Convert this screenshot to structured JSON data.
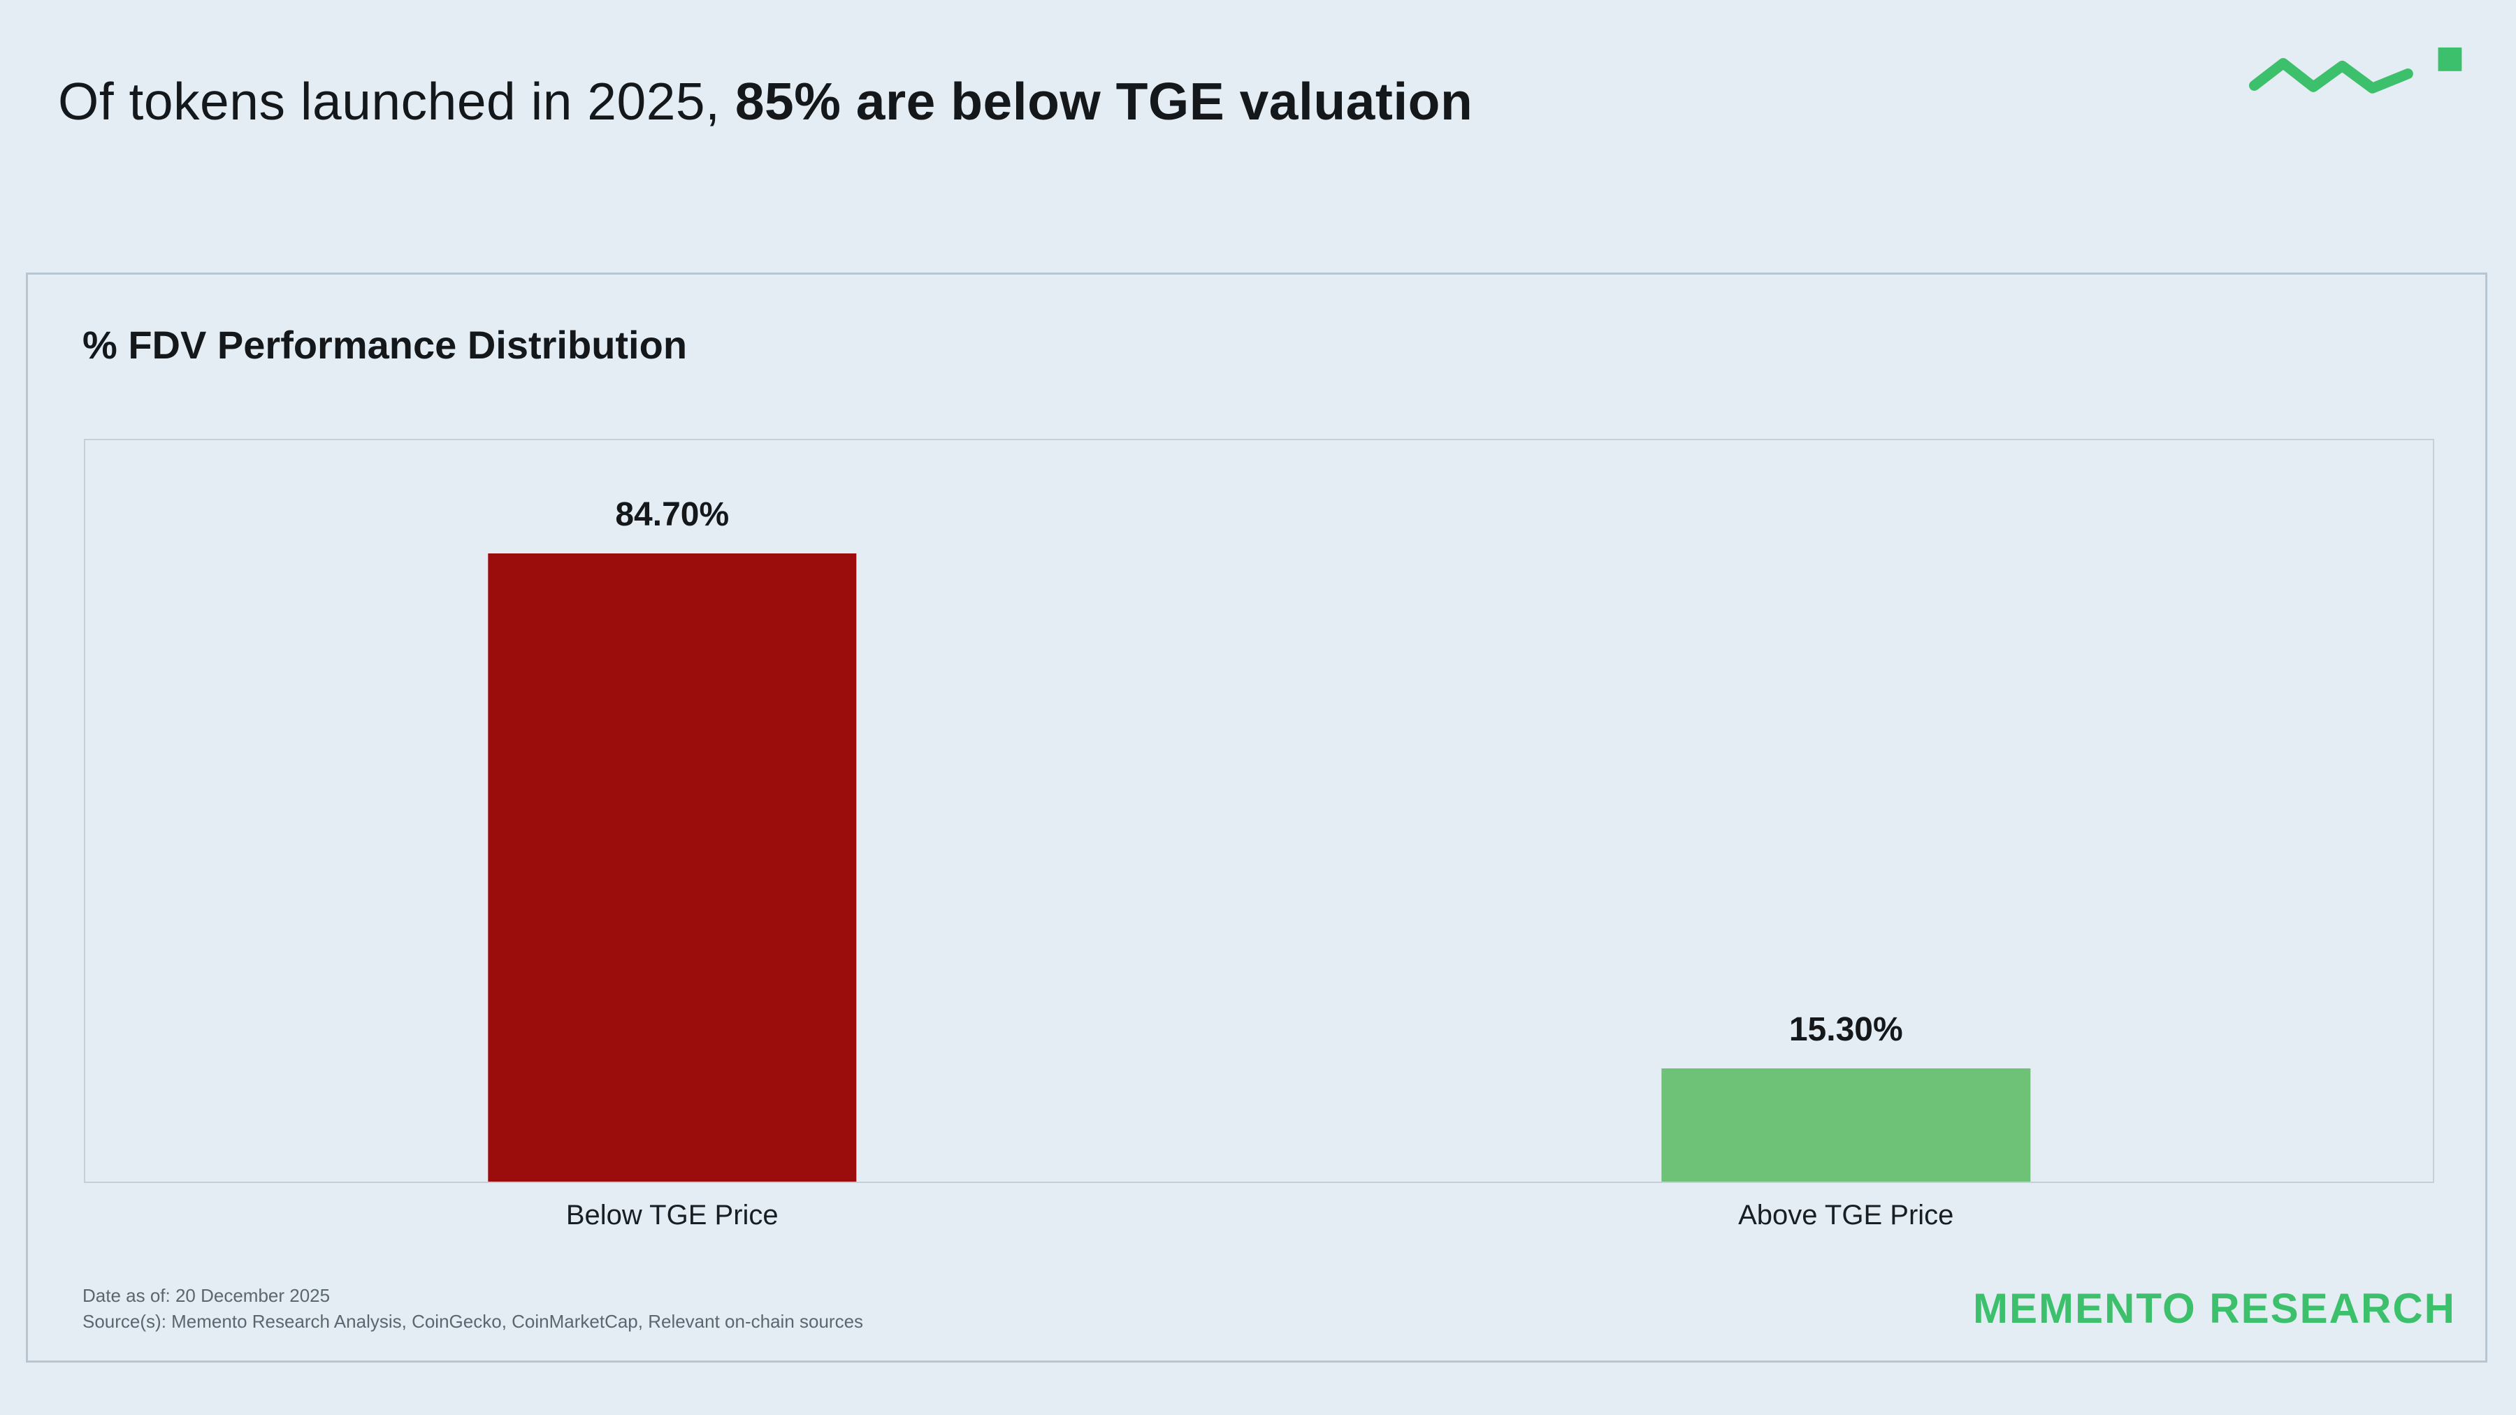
{
  "header": {
    "title_regular": "Of tokens launched in 2025, ",
    "title_bold": "85% are below TGE valuation"
  },
  "chart_data": {
    "type": "bar",
    "title": "% FDV Performance Distribution",
    "categories": [
      "Below TGE Price",
      "Above TGE Price"
    ],
    "values": [
      84.7,
      15.3
    ],
    "value_labels": [
      "84.70%",
      "15.30%"
    ],
    "bar_colors": [
      "#9b0d0d",
      "#6dc277"
    ],
    "ylim": [
      0,
      100
    ],
    "xlabel": "",
    "ylabel": "",
    "grid": false,
    "legend": "none"
  },
  "footer": {
    "date_line": "Date as of: 20 December 2025",
    "source_line": "Source(s): Memento Research Analysis, CoinGecko, CoinMarketCap, Relevant on-chain sources",
    "brand": "MEMENTO RESEARCH"
  },
  "colors": {
    "background": "#e4edf4",
    "accent_green": "#3dc06c",
    "bar_below": "#9b0d0d",
    "bar_above": "#6dc277",
    "text_dark": "#14181b",
    "text_muted": "#5b6770"
  }
}
